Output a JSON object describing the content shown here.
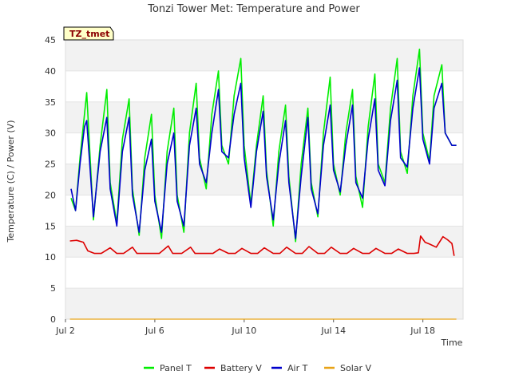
{
  "chart_data": {
    "type": "line",
    "title": "Tonzi Tower Met: Temperature and Power",
    "site_label": "TZ_tmet",
    "xlabel": "Time",
    "ylabel": "Temperature (C) / Power (V)",
    "xlim": [
      2.0,
      19.8
    ],
    "ylim": [
      0,
      45
    ],
    "x_ticks": [
      {
        "value": 2,
        "label": "Jul 2"
      },
      {
        "value": 6,
        "label": "Jul 6"
      },
      {
        "value": 10,
        "label": "Jul 10"
      },
      {
        "value": 14,
        "label": "Jul 14"
      },
      {
        "value": 18,
        "label": "Jul 18"
      }
    ],
    "y_ticks": [
      0,
      5,
      10,
      15,
      20,
      25,
      30,
      35,
      40,
      45
    ],
    "grid": true,
    "legend_position": "bottom",
    "series": [
      {
        "name": "Panel T",
        "color": "#00ee00",
        "x": [
          2.25,
          2.45,
          2.65,
          2.85,
          2.95,
          3.25,
          3.55,
          3.85,
          4.0,
          4.3,
          4.55,
          4.85,
          5.0,
          5.3,
          5.55,
          5.85,
          6.0,
          6.3,
          6.55,
          6.85,
          7.0,
          7.3,
          7.55,
          7.85,
          8.0,
          8.3,
          8.55,
          8.85,
          9.0,
          9.3,
          9.55,
          9.85,
          10.0,
          10.3,
          10.55,
          10.85,
          11.0,
          11.3,
          11.55,
          11.85,
          12.0,
          12.3,
          12.55,
          12.85,
          13.0,
          13.3,
          13.55,
          13.85,
          14.0,
          14.3,
          14.55,
          14.85,
          15.0,
          15.3,
          15.55,
          15.85,
          16.0,
          16.3,
          16.55,
          16.85,
          17.0,
          17.3,
          17.55,
          17.85,
          18.0,
          18.3,
          18.5,
          18.85,
          19.0,
          19.3,
          19.5
        ],
        "values": [
          19.5,
          17.5,
          26,
          33,
          36.5,
          16,
          28,
          37,
          22,
          15.5,
          29,
          35.5,
          21,
          13.5,
          26,
          33,
          20,
          13,
          27,
          34,
          20,
          14,
          30,
          38,
          26,
          21,
          33,
          40,
          28,
          25,
          36,
          42,
          28,
          18.5,
          28,
          36,
          24,
          15,
          27,
          34.5,
          23,
          12.5,
          25,
          34,
          22,
          16.5,
          30,
          39,
          25,
          20,
          30,
          37,
          23,
          18,
          31,
          39.5,
          25,
          22,
          34,
          42,
          27,
          23.5,
          36,
          43.5,
          30,
          25.5,
          36,
          41,
          30,
          28,
          28
        ]
      },
      {
        "name": "Battery V",
        "color": "#dd0000",
        "x": [
          2.2,
          2.5,
          2.8,
          3.0,
          3.3,
          3.6,
          4.0,
          4.3,
          4.6,
          5.0,
          5.2,
          5.4,
          5.8,
          6.2,
          6.6,
          6.8,
          7.2,
          7.6,
          7.8,
          8.2,
          8.6,
          8.9,
          9.3,
          9.6,
          9.9,
          10.3,
          10.6,
          10.9,
          11.3,
          11.6,
          11.9,
          12.3,
          12.6,
          12.9,
          13.3,
          13.6,
          13.9,
          14.3,
          14.6,
          14.9,
          15.3,
          15.6,
          15.9,
          16.3,
          16.6,
          16.9,
          17.3,
          17.6,
          17.8,
          17.9,
          18.1,
          18.3,
          18.6,
          18.9,
          19.1,
          19.3,
          19.4
        ],
        "values": [
          12.6,
          12.7,
          12.4,
          11.0,
          10.6,
          10.6,
          11.5,
          10.6,
          10.6,
          11.6,
          10.6,
          10.6,
          10.6,
          10.6,
          11.8,
          10.6,
          10.6,
          11.6,
          10.6,
          10.6,
          10.6,
          11.3,
          10.6,
          10.6,
          11.4,
          10.6,
          10.6,
          11.5,
          10.6,
          10.6,
          11.6,
          10.6,
          10.6,
          11.7,
          10.6,
          10.6,
          11.6,
          10.6,
          10.6,
          11.4,
          10.6,
          10.6,
          11.4,
          10.6,
          10.6,
          11.3,
          10.6,
          10.6,
          10.7,
          13.4,
          12.4,
          12.1,
          11.6,
          13.3,
          12.8,
          12.2,
          10.2
        ]
      },
      {
        "name": "Air T",
        "color": "#0000cc",
        "x": [
          2.25,
          2.45,
          2.65,
          2.85,
          2.95,
          3.25,
          3.55,
          3.85,
          4.0,
          4.3,
          4.55,
          4.85,
          5.0,
          5.3,
          5.55,
          5.85,
          6.0,
          6.3,
          6.55,
          6.85,
          7.0,
          7.3,
          7.55,
          7.85,
          8.0,
          8.3,
          8.55,
          8.85,
          9.0,
          9.3,
          9.55,
          9.85,
          10.0,
          10.3,
          10.55,
          10.85,
          11.0,
          11.3,
          11.55,
          11.85,
          12.0,
          12.3,
          12.55,
          12.85,
          13.0,
          13.3,
          13.55,
          13.85,
          14.0,
          14.3,
          14.55,
          14.85,
          15.0,
          15.3,
          15.55,
          15.85,
          16.0,
          16.3,
          16.55,
          16.85,
          17.0,
          17.3,
          17.55,
          17.85,
          18.0,
          18.3,
          18.5,
          18.85,
          19.0,
          19.3,
          19.5
        ],
        "values": [
          21,
          17.5,
          25,
          31,
          32,
          16.5,
          27,
          32.5,
          21,
          15,
          27,
          32.5,
          20,
          14,
          24,
          29,
          19,
          14,
          25,
          30,
          19,
          15,
          28,
          34,
          25,
          22,
          30,
          37,
          27,
          26,
          33,
          38,
          26,
          18,
          27,
          33.5,
          23,
          16,
          25,
          32,
          22,
          13,
          23,
          32.5,
          21,
          17,
          28,
          34.5,
          24,
          20.5,
          28,
          34.5,
          22,
          19.5,
          29,
          35.5,
          24,
          21.5,
          32,
          38.5,
          26,
          24.5,
          34,
          40.5,
          29,
          25,
          34,
          38,
          30,
          28,
          28
        ]
      },
      {
        "name": "Solar V",
        "color": "#e8a317",
        "x": [
          2.2,
          19.5
        ],
        "values": [
          0,
          0
        ]
      }
    ]
  }
}
